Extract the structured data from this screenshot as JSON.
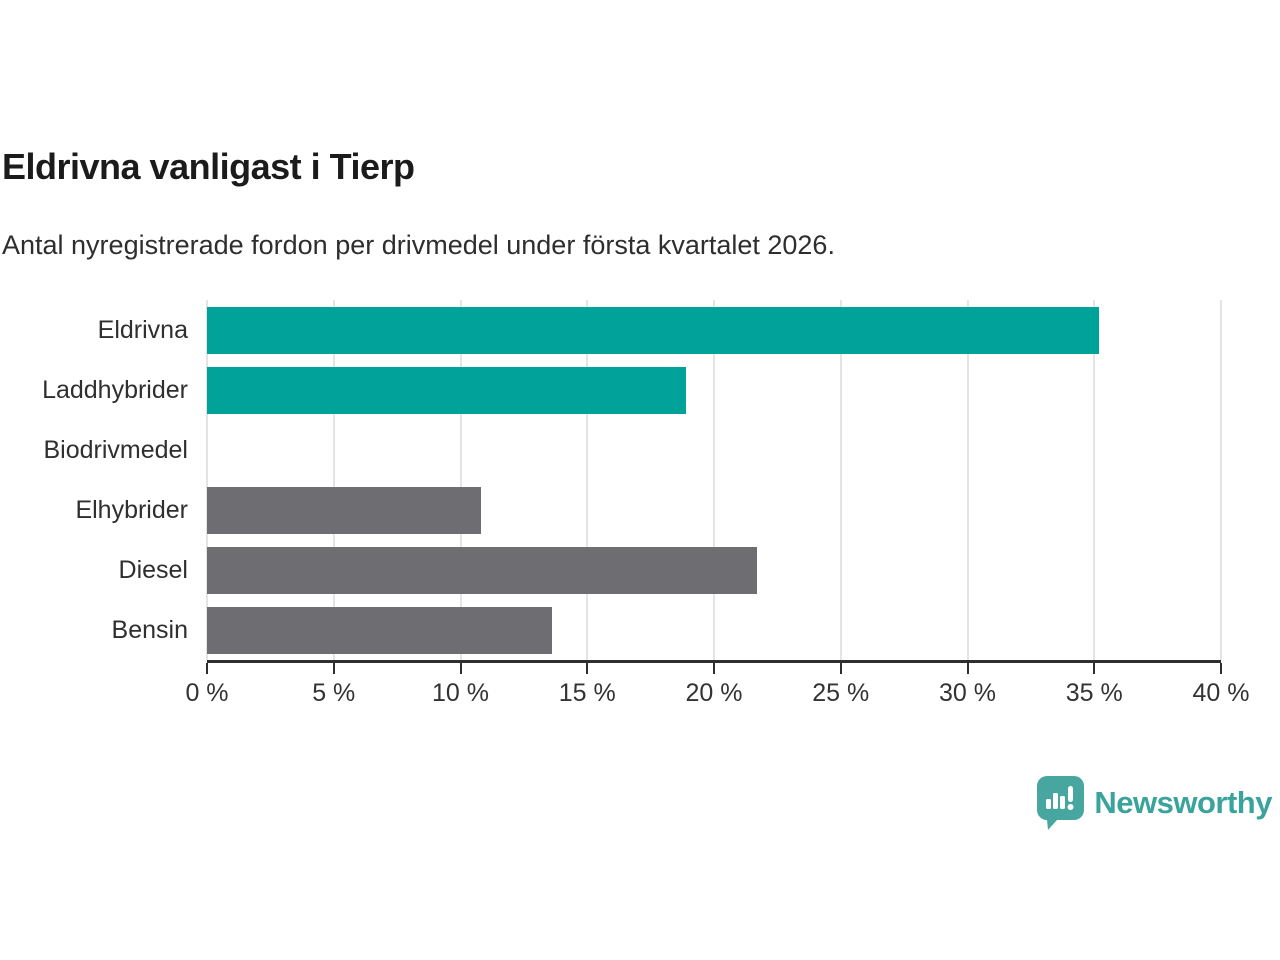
{
  "header": {
    "title": "Eldrivna vanligast i Tierp",
    "subtitle": "Antal nyregistrerade fordon per drivmedel under första kvartalet 2026."
  },
  "chart_data": {
    "type": "bar",
    "orientation": "horizontal",
    "title": "Eldrivna vanligast i Tierp",
    "subtitle": "Antal nyregistrerade fordon per drivmedel under första kvartalet 2026.",
    "categories": [
      "Eldrivna",
      "Laddhybrider",
      "Biodrivmedel",
      "Elhybrider",
      "Diesel",
      "Bensin"
    ],
    "values": [
      35.2,
      18.9,
      0,
      10.8,
      21.7,
      13.6
    ],
    "unit": "%",
    "bar_colors": [
      "#00a29a",
      "#00a29a",
      "#6e6e72",
      "#6e6e72",
      "#6e6e72",
      "#6e6e72"
    ],
    "xlim": [
      0,
      40
    ],
    "x_ticks": [
      0,
      5,
      10,
      15,
      20,
      25,
      30,
      35,
      40
    ],
    "x_tick_labels": [
      "0 %",
      "5 %",
      "10 %",
      "15 %",
      "20 %",
      "25 %",
      "30 %",
      "35 %",
      "40 %"
    ],
    "grid": true,
    "legend": "none",
    "xlabel": "",
    "ylabel": ""
  },
  "colors": {
    "accent_teal": "#00a29a",
    "bar_gray": "#6e6e72",
    "gridline": "#e4e4e4",
    "axis": "#2f2f2f",
    "brand_teal": "#3aa39c",
    "logo_bubble_teal": "#47a7a0"
  },
  "footer": {
    "brand": "Newsworthy",
    "logo_icon": "newsworthy-speech-bubble-chart-icon"
  }
}
